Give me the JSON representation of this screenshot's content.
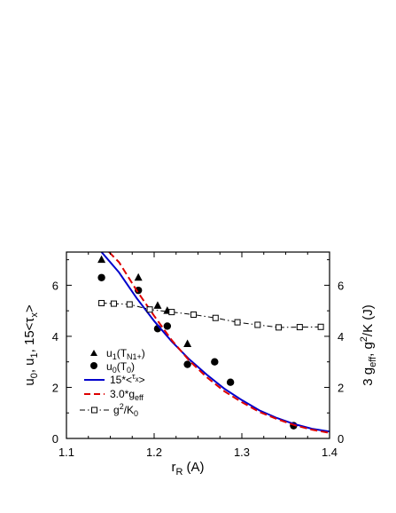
{
  "chart_data": {
    "type": "scatter",
    "title": "",
    "xlabel": {
      "main": "r",
      "sub": "R",
      "rest": " (A)"
    },
    "ylabel_left": {
      "parts": [
        "u",
        "0",
        ", u",
        "1",
        ", 15<",
        "τ",
        "x",
        ">"
      ]
    },
    "ylabel_right": {
      "parts": [
        "3 g",
        "eff",
        ", g",
        "2",
        "/K (J)"
      ]
    },
    "xlim": [
      1.1,
      1.4
    ],
    "ylim": [
      0,
      7.3
    ],
    "xticks": [
      "1.1",
      "1.2",
      "1.3",
      "1.4"
    ],
    "xtick_values": [
      1.1,
      1.2,
      1.3,
      1.4
    ],
    "yticks": [
      "0",
      "2",
      "4",
      "6"
    ],
    "ytick_values": [
      0,
      2,
      4,
      6
    ],
    "grid": false,
    "legend_position": "center-left",
    "series": [
      {
        "name": {
          "base": "u",
          "sub1": "1",
          "mid": "(T",
          "sub2": "N1+",
          "end": ")"
        },
        "kind": "scatter",
        "marker": "triangle",
        "color": "#000000",
        "x": [
          1.14,
          1.182,
          1.204,
          1.215,
          1.238
        ],
        "y": [
          7.0,
          6.3,
          5.2,
          5.0,
          3.7
        ]
      },
      {
        "name": {
          "base": "u",
          "sub1": "0",
          "mid": "(T",
          "sub2": "0",
          "end": ")"
        },
        "kind": "scatter",
        "marker": "circle",
        "color": "#000000",
        "x": [
          1.14,
          1.182,
          1.204,
          1.215,
          1.238,
          1.269,
          1.287,
          1.359
        ],
        "y": [
          6.3,
          5.8,
          4.3,
          4.4,
          2.9,
          3.0,
          2.2,
          0.5
        ]
      },
      {
        "name": {
          "base": "15*<",
          "sup": "τ",
          "sub1": "x",
          "end": ">"
        },
        "kind": "line",
        "color": "#0000cc",
        "dash": "solid",
        "x": [
          1.14,
          1.16,
          1.18,
          1.2,
          1.22,
          1.24,
          1.26,
          1.28,
          1.3,
          1.32,
          1.34,
          1.36,
          1.38,
          1.4
        ],
        "y": [
          7.3,
          6.5,
          5.5,
          4.6,
          3.8,
          3.1,
          2.5,
          1.95,
          1.5,
          1.1,
          0.8,
          0.56,
          0.38,
          0.27
        ]
      },
      {
        "name": {
          "base": "3.0*g",
          "sub1": "eff"
        },
        "kind": "line",
        "color": "#dd0000",
        "dash": "dashed",
        "x": [
          1.14,
          1.16,
          1.18,
          1.2,
          1.22,
          1.24,
          1.26,
          1.28,
          1.3,
          1.32,
          1.34,
          1.36,
          1.38,
          1.4
        ],
        "y": [
          7.6,
          6.9,
          5.8,
          4.8,
          3.85,
          3.05,
          2.4,
          1.85,
          1.42,
          1.04,
          0.76,
          0.52,
          0.34,
          0.22
        ]
      },
      {
        "name": {
          "base": "g",
          "sup": "2",
          "mid": "/K",
          "sub1": "0"
        },
        "kind": "line-markers",
        "marker": "square-open",
        "color": "#000000",
        "dash": "dashdot",
        "x": [
          1.14,
          1.154,
          1.172,
          1.195,
          1.22,
          1.245,
          1.27,
          1.295,
          1.318,
          1.342,
          1.366,
          1.39
        ],
        "y": [
          5.3,
          5.28,
          5.25,
          5.05,
          4.95,
          4.85,
          4.72,
          4.55,
          4.45,
          4.35,
          4.36,
          4.37
        ]
      }
    ]
  }
}
